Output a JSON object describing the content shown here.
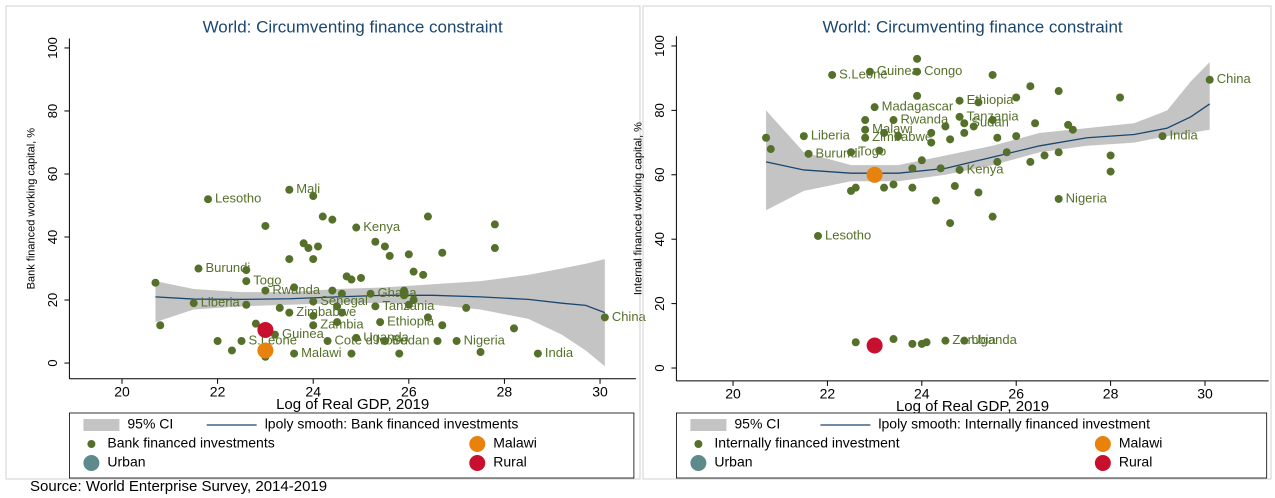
{
  "source": "Source: World Enterprise Survey, 2014-2019",
  "chart_data": [
    {
      "type": "scatter",
      "title": "World: Circumventing finance constraint",
      "xlabel": "Log of Real GDP, 2019",
      "ylabel": "Bank financed working capital, %",
      "xlim": [
        18.9,
        30.75
      ],
      "ylim": [
        -5,
        103
      ],
      "xticks": [
        20,
        22,
        24,
        26,
        28,
        30
      ],
      "yticks": [
        0,
        20,
        40,
        60,
        80,
        100
      ],
      "series": [
        {
          "name": "95% CI",
          "style": "band",
          "color": "#c4c4c4",
          "x": [
            20.7,
            21.5,
            22.5,
            23.5,
            24.5,
            25.5,
            26.5,
            27.5,
            28.5,
            29.2,
            29.7,
            30.1
          ],
          "upper": [
            26,
            23.5,
            22.5,
            22.5,
            23.5,
            24,
            25,
            26,
            28,
            30,
            31.5,
            33
          ],
          "lower": [
            13,
            17,
            18,
            18.5,
            19,
            19,
            18.5,
            17,
            14,
            9,
            4,
            -1
          ]
        },
        {
          "name": "lpoly smooth: Bank financed investments",
          "style": "line",
          "color": "#1a476f",
          "x": [
            20.7,
            21.5,
            22.5,
            23.5,
            24.5,
            25.5,
            26.5,
            27.5,
            28.5,
            29.2,
            29.7,
            30.1
          ],
          "values": [
            21,
            20.3,
            20.2,
            20.4,
            21,
            21.5,
            21.5,
            21,
            20.2,
            19,
            18.3,
            16
          ]
        },
        {
          "name": "Bank financed investments",
          "style": "markers",
          "color": "#55702a",
          "x": [
            23.5,
            21.8,
            24.0,
            24.9,
            24.2,
            24.4,
            26.4,
            27.8,
            23.0,
            25.3,
            25.5,
            23.8,
            23.9,
            24.1,
            23.5,
            24.0,
            25.6,
            26.0,
            26.7,
            27.8,
            21.6,
            22.6,
            20.7,
            22.6,
            23.0,
            23.6,
            24.7,
            24.8,
            25.0,
            26.1,
            26.3,
            24.4,
            24.6,
            25.2,
            25.9,
            25.9,
            21.5,
            22.6,
            23.3,
            24.0,
            24.5,
            25.3,
            26.1,
            26.0,
            27.2,
            23.5,
            24.0,
            24.6,
            26.4,
            26.7,
            20.8,
            22.8,
            24.0,
            24.5,
            25.4,
            28.2,
            22.0,
            22.3,
            22.5,
            23.2,
            23.0,
            23.6,
            24.3,
            24.9,
            25.5,
            24.8,
            25.8,
            26.6,
            27.0,
            27.5,
            28.7,
            30.1
          ],
          "values": [
            55,
            52,
            53,
            43,
            46.5,
            45.5,
            46.5,
            44,
            43.5,
            38.5,
            37,
            38,
            36.5,
            37,
            33,
            33,
            34,
            34.5,
            35,
            36.5,
            30,
            29.5,
            25.5,
            26,
            23,
            24,
            27.5,
            26.5,
            27,
            29,
            28,
            23,
            22,
            22,
            23,
            21.5,
            19,
            18.5,
            17.5,
            19.5,
            18,
            18,
            20,
            18.5,
            17.5,
            16,
            15,
            16,
            14.5,
            12,
            12,
            12.5,
            12,
            13,
            13,
            11,
            7,
            4,
            7,
            9,
            2,
            3,
            7,
            8,
            7,
            3,
            3,
            7,
            7,
            3.5,
            3,
            14.5
          ],
          "labels": [
            "Mali",
            "Lesotho",
            null,
            "Kenya",
            null,
            null,
            null,
            null,
            null,
            null,
            null,
            null,
            null,
            null,
            null,
            null,
            null,
            null,
            null,
            null,
            "Burundi",
            null,
            null,
            "Togo",
            "Rwanda",
            null,
            null,
            null,
            null,
            null,
            null,
            null,
            null,
            "Ghana",
            null,
            null,
            "Liberia",
            null,
            null,
            "Senegal",
            null,
            "Tanzania",
            null,
            null,
            null,
            "Zimbabwe",
            null,
            null,
            null,
            null,
            null,
            null,
            "Zambia",
            null,
            "Ethiopia",
            null,
            null,
            null,
            "S.Leone",
            "Guinea",
            null,
            "Malawi",
            "Cote d'Ivoire",
            "Uganda",
            "Sudan",
            null,
            null,
            null,
            "Nigeria",
            null,
            "India",
            "China"
          ]
        },
        {
          "name": "Urban",
          "style": "highlight",
          "color": "#5f8a8b",
          "x": [
            23.0
          ],
          "values": [
            4
          ]
        },
        {
          "name": "Malawi",
          "style": "highlight",
          "color": "#e8820c",
          "x": [
            23.0
          ],
          "values": [
            4
          ]
        },
        {
          "name": "Rural",
          "style": "highlight",
          "color": "#c8102e",
          "x": [
            23.0
          ],
          "values": [
            10.5
          ]
        }
      ]
    },
    {
      "type": "scatter",
      "title": "World: Circumventing finance constraint",
      "xlabel": "Log of Real GDP, 2019",
      "ylabel": "Internal financed working capital, %",
      "xlim": [
        18.8,
        31.35
      ],
      "ylim": [
        -4,
        103
      ],
      "xticks": [
        20,
        22,
        24,
        26,
        28,
        30
      ],
      "yticks": [
        0,
        20,
        40,
        60,
        80,
        100
      ],
      "series": [
        {
          "name": "95% CI",
          "style": "band",
          "color": "#c4c4c4",
          "x": [
            20.7,
            21.5,
            22.5,
            23.5,
            24.5,
            25.5,
            26.5,
            27.5,
            28.5,
            29.2,
            29.7,
            30.1
          ],
          "upper": [
            80,
            67,
            63,
            63,
            66,
            69,
            73,
            74.5,
            76,
            80,
            89,
            95
          ],
          "lower": [
            49,
            55,
            58,
            58,
            60,
            63,
            67,
            69,
            70,
            72,
            73,
            74
          ]
        },
        {
          "name": "lpoly smooth: Internally financed investment",
          "style": "line",
          "color": "#1a476f",
          "x": [
            20.7,
            21.5,
            22.5,
            23.5,
            24.5,
            25.5,
            26.5,
            27.5,
            28.5,
            29.2,
            29.7,
            30.1
          ],
          "values": [
            64,
            61.5,
            60.5,
            60.5,
            62,
            65.5,
            69,
            71.5,
            72.5,
            74.5,
            78,
            82
          ]
        },
        {
          "name": "Internally financed investment",
          "style": "markers",
          "color": "#55702a",
          "x": [
            23.9,
            22.9,
            23.9,
            22.1,
            25.5,
            26.3,
            26.9,
            23.9,
            24.8,
            25.2,
            26.0,
            28.2,
            23.0,
            24.8,
            22.8,
            23.4,
            25.5,
            24.9,
            24.5,
            25.1,
            26.4,
            27.1,
            27.2,
            21.5,
            22.8,
            23.2,
            23.5,
            24.2,
            24.9,
            25.6,
            26.0,
            29.1,
            30.1,
            20.7,
            22.8,
            24.2,
            24.6,
            20.8,
            22.5,
            21.6,
            23.1,
            25.8,
            26.6,
            26.9,
            28.0,
            24.0,
            25.6,
            26.3,
            23.8,
            24.4,
            24.8,
            23.4,
            22.6,
            23.2,
            23.8,
            24.7,
            25.2,
            22.5,
            28.0,
            26.9,
            24.3,
            25.5,
            24.6,
            21.8,
            22.6,
            23.4,
            23.8,
            24.1,
            24.0,
            24.5,
            24.9
          ],
          "values": [
            96,
            92,
            92,
            91,
            91,
            87.5,
            86,
            84.5,
            83,
            82.5,
            84,
            84,
            81,
            78,
            77,
            77,
            77,
            76,
            75,
            75,
            76,
            75.5,
            74,
            72,
            74,
            73,
            72,
            73,
            73,
            71.5,
            72,
            72,
            89.5,
            71.5,
            71.5,
            70,
            71,
            68,
            67,
            66.5,
            67.5,
            67,
            66,
            67,
            66,
            64.5,
            64,
            64,
            62,
            62,
            61.5,
            57,
            56,
            56,
            56,
            56.5,
            54.5,
            55,
            61,
            52.5,
            52,
            47,
            45,
            41,
            8,
            9,
            7.5,
            8,
            7.5,
            8.5,
            8.5
          ],
          "labels": [
            null,
            "Guinea",
            "Congo",
            "S.Leone",
            null,
            null,
            null,
            null,
            "Ethiopia",
            null,
            null,
            null,
            "Madagascar",
            "Tanzania",
            null,
            "Rwanda",
            null,
            "Sudan",
            null,
            null,
            null,
            null,
            null,
            "Liberia",
            "Malawi",
            null,
            null,
            null,
            null,
            null,
            null,
            "India",
            "China",
            null,
            "Zimbabwe",
            null,
            null,
            null,
            "Togo",
            "Burundi",
            null,
            null,
            null,
            null,
            null,
            null,
            null,
            null,
            null,
            null,
            "Kenya",
            null,
            null,
            null,
            null,
            null,
            null,
            null,
            null,
            "Nigeria",
            null,
            null,
            null,
            "Lesotho",
            null,
            null,
            null,
            null,
            null,
            "Zambia",
            "Uganda"
          ]
        },
        {
          "name": "Urban",
          "style": "highlight",
          "color": "#5f8a8b",
          "x": [
            23.0
          ],
          "values": [
            60
          ]
        },
        {
          "name": "Malawi",
          "style": "highlight",
          "color": "#e8820c",
          "x": [
            23.0
          ],
          "values": [
            60
          ]
        },
        {
          "name": "Rural",
          "style": "highlight",
          "color": "#c8102e",
          "x": [
            23.0
          ],
          "values": [
            7
          ]
        }
      ]
    }
  ]
}
